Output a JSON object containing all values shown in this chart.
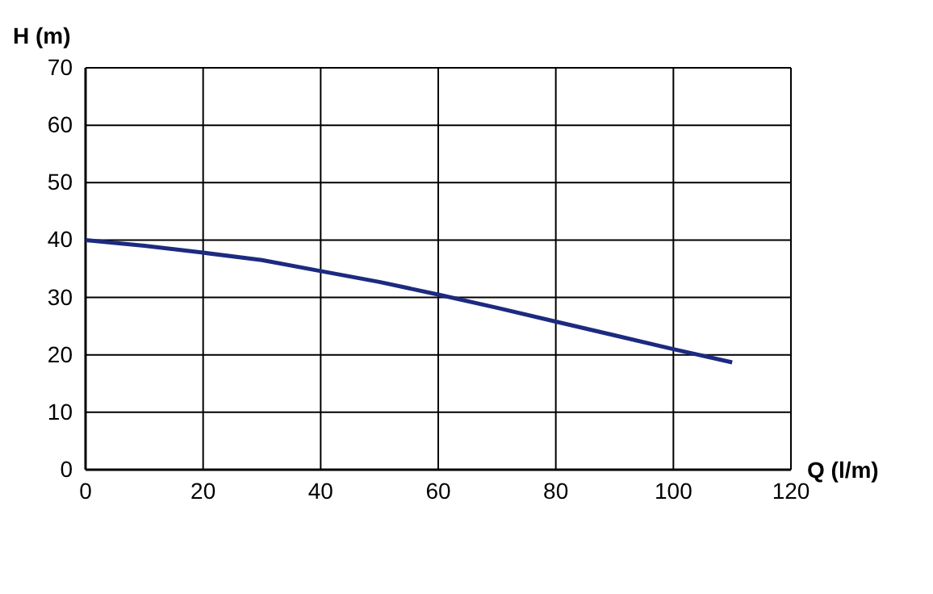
{
  "chart_data": {
    "type": "line",
    "xlabel": "Q (l/m)",
    "ylabel": "H (m)",
    "x": [
      0,
      10,
      20,
      30,
      40,
      50,
      60,
      70,
      80,
      90,
      100,
      110
    ],
    "series": [
      {
        "color": "#1c2a80",
        "values": [
          40,
          39,
          37.8,
          36.5,
          34.6,
          32.7,
          30.5,
          28.2,
          25.8,
          23.4,
          21,
          18.7
        ]
      }
    ],
    "xlim": [
      0,
      120
    ],
    "xticks": [
      0,
      20,
      40,
      60,
      80,
      100,
      120
    ],
    "ylim": [
      0,
      70
    ],
    "yticks": [
      0,
      10,
      20,
      30,
      40,
      50,
      60,
      70
    ],
    "grid": true,
    "marker": "none",
    "line_style": "solid"
  }
}
